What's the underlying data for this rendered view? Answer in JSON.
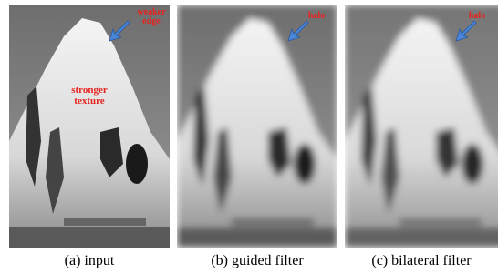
{
  "panels": [
    {
      "caption": "(a) input",
      "annotations": [
        "weaker edge",
        "stronger texture"
      ]
    },
    {
      "caption": "(b) guided filter",
      "annotations": [
        "halo"
      ]
    },
    {
      "caption": "(c) bilateral filter",
      "annotations": [
        "halo"
      ]
    }
  ]
}
